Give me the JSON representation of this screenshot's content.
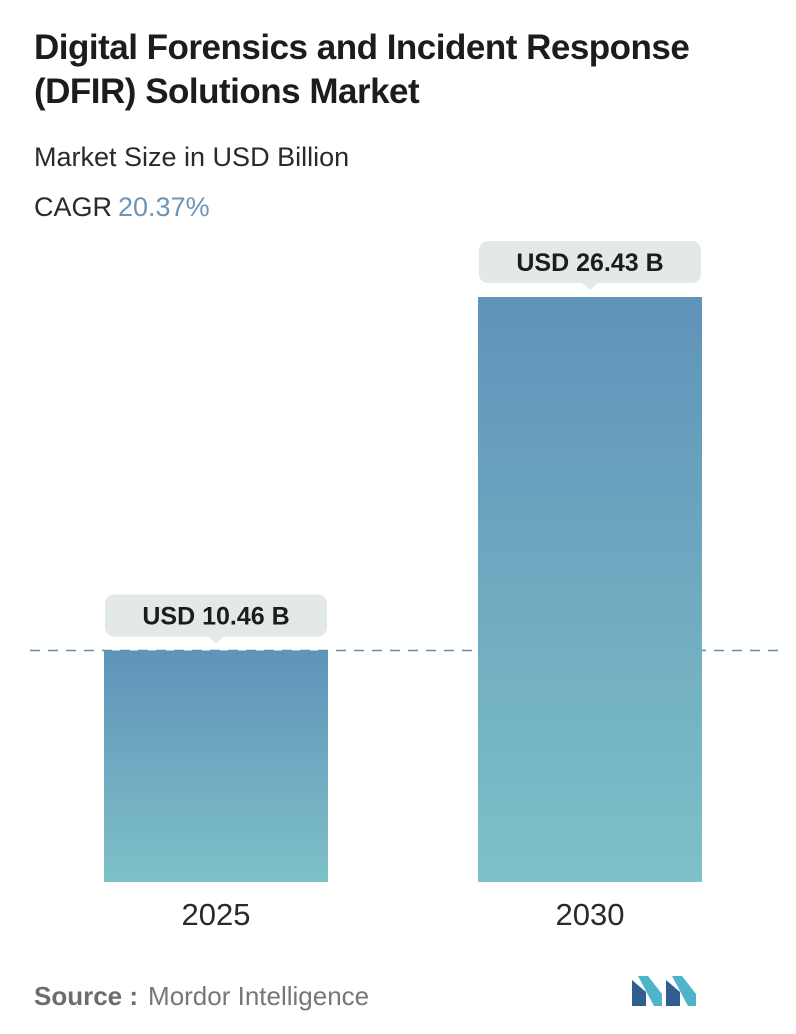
{
  "title": "Digital Forensics and Incident Response (DFIR) Solutions Market",
  "subtitle": "Market Size in USD Billion",
  "cagr": {
    "label": "CAGR",
    "value": "20.37%"
  },
  "source": {
    "label": "Source :",
    "value": "Mordor Intelligence"
  },
  "colors": {
    "bar_top": "#5f93b9",
    "bar_bottom": "#7ec1c8",
    "accent": "#6e95b5",
    "reference_line": "#5f8fb0"
  },
  "chart_data": {
    "type": "bar",
    "categories": [
      "2025",
      "2030"
    ],
    "values": [
      10.46,
      26.43
    ],
    "data_labels": [
      "USD 10.46 B",
      "USD 26.43 B"
    ],
    "reference_line": 10.46,
    "ylim": [
      0,
      26.43
    ],
    "grid": false,
    "legend": "none"
  }
}
